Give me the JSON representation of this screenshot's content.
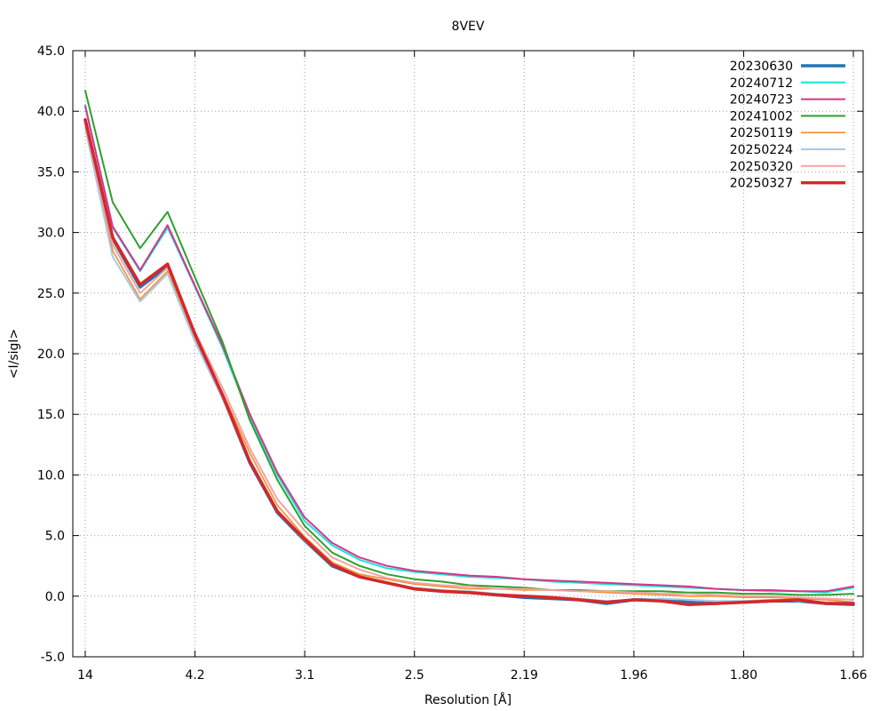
{
  "chart_data": {
    "type": "line",
    "title": "8VEV",
    "xlabel": "Resolution [Å]",
    "ylabel": "<I/sigI>",
    "ylim": [
      -5.0,
      45.0
    ],
    "y_ticks": [
      "-5.0",
      "0.0",
      "5.0",
      "10.0",
      "15.0",
      "20.0",
      "25.0",
      "30.0",
      "35.0",
      "40.0",
      "45.0"
    ],
    "x_ticks": [
      "14",
      "4.2",
      "3.1",
      "2.5",
      "2.19",
      "1.96",
      "1.80",
      "1.66"
    ],
    "x_tick_index": [
      0,
      4,
      8,
      12,
      16,
      20,
      24,
      28
    ],
    "x_count": 29,
    "grid": true,
    "legend_position": "top-right",
    "series": [
      {
        "name": "20230630",
        "color": "#1f77b4",
        "width": 3.5,
        "values": [
          39.3,
          29.5,
          25.5,
          27.2,
          21.5,
          16.5,
          11.0,
          6.9,
          4.6,
          2.5,
          1.6,
          1.1,
          0.6,
          0.4,
          0.3,
          0.1,
          -0.1,
          -0.2,
          -0.3,
          -0.6,
          -0.3,
          -0.3,
          -0.5,
          -0.6,
          -0.5,
          -0.4,
          -0.4,
          -0.6,
          -0.7
        ]
      },
      {
        "name": "20240712",
        "color": "#17e4d8",
        "width": 2,
        "values": [
          40.5,
          30.4,
          26.8,
          30.4,
          25.5,
          20.5,
          14.8,
          10.0,
          6.2,
          4.2,
          3.0,
          2.3,
          2.0,
          1.8,
          1.6,
          1.5,
          1.4,
          1.2,
          1.1,
          1.0,
          0.9,
          0.8,
          0.7,
          0.6,
          0.5,
          0.4,
          0.4,
          0.3,
          0.7
        ]
      },
      {
        "name": "20240723",
        "color": "#d6358a",
        "width": 2,
        "values": [
          40.4,
          30.5,
          26.9,
          30.6,
          25.6,
          20.7,
          15.0,
          10.2,
          6.5,
          4.4,
          3.2,
          2.5,
          2.1,
          1.9,
          1.7,
          1.6,
          1.4,
          1.3,
          1.2,
          1.1,
          1.0,
          0.9,
          0.8,
          0.6,
          0.5,
          0.5,
          0.4,
          0.4,
          0.8
        ]
      },
      {
        "name": "20241002",
        "color": "#2ca02c",
        "width": 2,
        "values": [
          41.7,
          32.5,
          28.7,
          31.7,
          26.3,
          21.0,
          14.5,
          9.6,
          5.8,
          3.6,
          2.5,
          1.8,
          1.4,
          1.2,
          0.9,
          0.8,
          0.7,
          0.5,
          0.5,
          0.4,
          0.4,
          0.4,
          0.3,
          0.3,
          0.2,
          0.2,
          0.1,
          0.1,
          0.2
        ]
      },
      {
        "name": "20250119",
        "color": "#f28e2b",
        "width": 1.6,
        "values": [
          39.0,
          28.5,
          24.5,
          26.8,
          21.3,
          16.8,
          11.8,
          7.5,
          4.9,
          2.8,
          1.8,
          1.4,
          1.0,
          0.8,
          0.6,
          0.6,
          0.5,
          0.5,
          0.4,
          0.3,
          0.2,
          0.1,
          0.0,
          0.0,
          -0.1,
          -0.1,
          -0.2,
          -0.3,
          -0.5
        ]
      },
      {
        "name": "20250224",
        "color": "#a6c8e8",
        "width": 2,
        "values": [
          38.6,
          28.0,
          24.3,
          26.6,
          21.0,
          16.3,
          11.1,
          7.0,
          4.6,
          2.6,
          1.6,
          1.1,
          0.7,
          0.5,
          0.4,
          0.2,
          0.0,
          -0.1,
          -0.2,
          -0.4,
          -0.3,
          -0.2,
          -0.3,
          -0.4,
          -0.4,
          -0.3,
          -0.4,
          -0.5,
          -0.6
        ]
      },
      {
        "name": "20250320",
        "color": "#f4a3a3",
        "width": 2,
        "values": [
          38.9,
          29.0,
          25.0,
          27.1,
          21.8,
          17.2,
          12.2,
          8.0,
          5.4,
          3.2,
          2.2,
          1.5,
          1.1,
          0.9,
          0.8,
          0.6,
          0.6,
          0.5,
          0.4,
          0.4,
          0.3,
          0.2,
          0.2,
          0.1,
          0.0,
          0.0,
          -0.1,
          -0.2,
          -0.3
        ]
      },
      {
        "name": "20250327",
        "color": "#d62728",
        "width": 3.5,
        "values": [
          39.3,
          29.6,
          25.7,
          27.4,
          21.6,
          16.6,
          11.1,
          7.0,
          4.7,
          2.6,
          1.6,
          1.1,
          0.6,
          0.4,
          0.3,
          0.1,
          0.0,
          -0.1,
          -0.3,
          -0.5,
          -0.3,
          -0.4,
          -0.7,
          -0.6,
          -0.5,
          -0.4,
          -0.3,
          -0.6,
          -0.6
        ]
      }
    ]
  }
}
